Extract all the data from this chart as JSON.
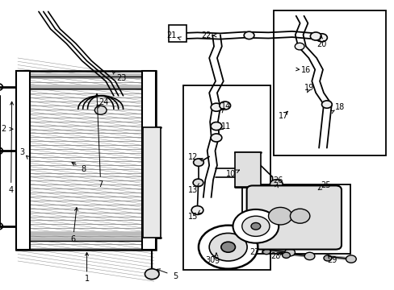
{
  "bg_color": "#ffffff",
  "line_color": "#000000",
  "label_color": "#000000",
  "figsize": [
    4.89,
    3.6
  ],
  "dpi": 100,
  "font_size": 7,
  "leader_lw": 0.7,
  "component_lw": 1.2
}
